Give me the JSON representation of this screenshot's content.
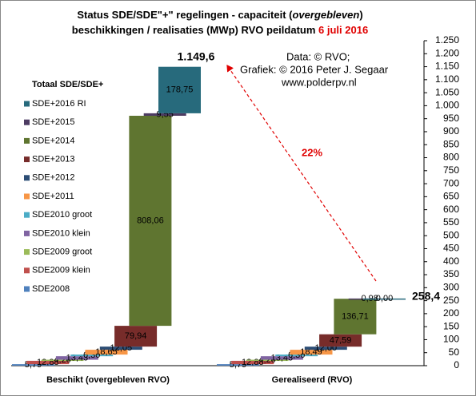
{
  "chart_data": {
    "type": "waterfall",
    "title": {
      "line1": {
        "before": "Status SDE/SDE\"+\"  regelingen - capaciteit (",
        "italic": "overgebleven",
        "after": ")"
      },
      "line2": {
        "text": "beschikkingen  / realisaties (MWp) RVO peildatum ",
        "date": "6 juli 2016"
      }
    },
    "annotations": {
      "source": "Data: © RVO;",
      "credit": "Grafiek: © 2016 Peter J. Segaar",
      "site": "www.polderpv.nl",
      "ratio": "22%"
    },
    "legend_title": "Totaal SDE/SDE+",
    "categories": [
      "Beschikt (overgebleven RVO)",
      "Gerealiseerd (RVO)"
    ],
    "totals": [
      1149.6,
      258.4
    ],
    "total_labels": [
      "1.149,6",
      "258,4"
    ],
    "series": [
      {
        "name": "SDE2008",
        "color": "#4f81bd",
        "values": [
          5.79,
          5.79
        ],
        "value_labels": [
          "5,79",
          "5,79"
        ]
      },
      {
        "name": "SDE2009 klein",
        "color": "#c0504d",
        "values": [
          12.88,
          12.88
        ],
        "value_labels": [
          "12,88",
          "12,88"
        ]
      },
      {
        "name": "SDE2009 groot",
        "color": "#9bbb59",
        "values": [
          4.2,
          4.2
        ],
        "value_labels": [
          "4,20",
          "4,20"
        ]
      },
      {
        "name": "SDE2010 klein",
        "color": "#8064a2",
        "values": [
          13.43,
          13.43
        ],
        "value_labels": [
          "13,43",
          "13,43"
        ]
      },
      {
        "name": "SDE2010 groot",
        "color": "#4bacc6",
        "values": [
          6.3,
          6.3
        ],
        "value_labels": [
          "6,30",
          "6,30"
        ]
      },
      {
        "name": "SDE+2011",
        "color": "#f79646",
        "values": [
          18.65,
          18.49
        ],
        "value_labels": [
          "18,65",
          "18,49"
        ]
      },
      {
        "name": "SDE+2012",
        "color": "#2c4d75",
        "values": [
          12.05,
          12.0
        ],
        "value_labels": [
          "12,05",
          "12,00"
        ]
      },
      {
        "name": "SDE+2013",
        "color": "#772c2a",
        "values": [
          79.94,
          47.59
        ],
        "value_labels": [
          "79,94",
          "47,59"
        ]
      },
      {
        "name": "SDE+2014",
        "color": "#5f7530",
        "values": [
          808.06,
          136.71
        ],
        "value_labels": [
          "808,06",
          "136,71"
        ]
      },
      {
        "name": "SDE+2015",
        "color": "#4d3b62",
        "values": [
          9.55,
          0.98
        ],
        "value_labels": [
          "9,55",
          "0,98"
        ]
      },
      {
        "name": "SDE+2016 RI",
        "color": "#276a7c",
        "values": [
          178.75,
          0.0
        ],
        "value_labels": [
          "178,75",
          "0,00"
        ]
      }
    ],
    "ylim": [
      0,
      1250
    ],
    "yticks": [
      0,
      50,
      100,
      150,
      200,
      250,
      300,
      350,
      400,
      450,
      500,
      550,
      600,
      650,
      700,
      750,
      800,
      850,
      900,
      950,
      {
        "value": 1000,
        "label": "1.000"
      },
      {
        "value": 1050,
        "label": "1.050"
      },
      {
        "value": 1100,
        "label": "1.100"
      },
      {
        "value": 1150,
        "label": "1.150"
      },
      {
        "value": 1200,
        "label": "1.200"
      },
      {
        "value": 1250,
        "label": "1.250"
      }
    ]
  }
}
